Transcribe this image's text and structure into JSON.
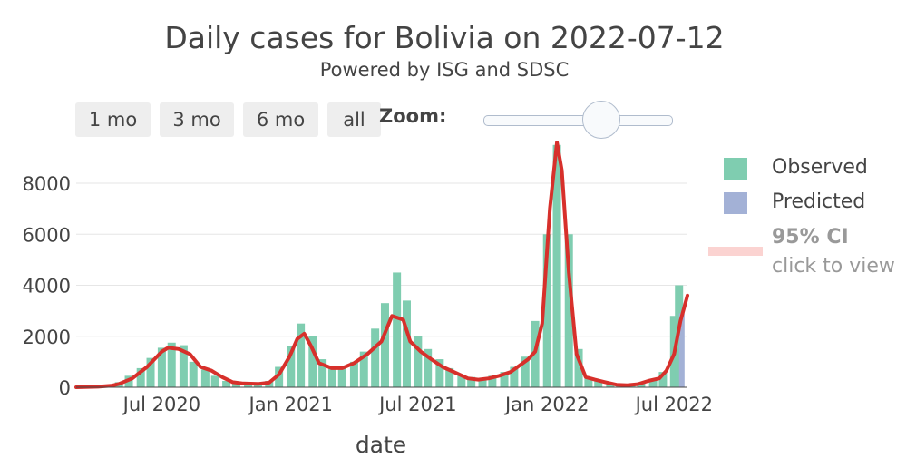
{
  "header": {
    "title": "Daily cases for Bolivia on 2022-07-12",
    "subtitle": "Powered by ISG and SDSC"
  },
  "controls": {
    "range_buttons": [
      "1 mo",
      "3 mo",
      "6 mo",
      "all"
    ],
    "zoom_label": "Zoom:"
  },
  "legend": {
    "observed": "Observed",
    "predicted": "Predicted",
    "ci": "95% CI",
    "ci_hint": "click to view"
  },
  "colors": {
    "observed": "#7fcdb0",
    "predicted": "#a3b1d6",
    "trend": "#d7302b",
    "ci": "#fbd3d1",
    "grid": "#e6e6e6"
  },
  "chart_data": {
    "type": "bar",
    "title": "Daily cases for Bolivia on 2022-07-12",
    "xlabel": "date",
    "ylabel": "",
    "x_range": [
      "2020-03-01",
      "2022-07-20"
    ],
    "ylim": [
      0,
      9600
    ],
    "y_ticks": [
      0,
      2000,
      4000,
      6000,
      8000
    ],
    "x_ticks": [
      {
        "date": "2020-07-01",
        "label": "Jul 2020"
      },
      {
        "date": "2021-01-01",
        "label": "Jan 2021"
      },
      {
        "date": "2021-07-01",
        "label": "Jul 2021"
      },
      {
        "date": "2022-01-01",
        "label": "Jan 2022"
      },
      {
        "date": "2022-07-01",
        "label": "Jul 2022"
      }
    ],
    "series": [
      {
        "name": "Observed",
        "kind": "weekly-bars",
        "points": [
          [
            "2020-03-15",
            10
          ],
          [
            "2020-04-01",
            50
          ],
          [
            "2020-04-15",
            80
          ],
          [
            "2020-05-01",
            200
          ],
          [
            "2020-05-15",
            450
          ],
          [
            "2020-06-01",
            750
          ],
          [
            "2020-06-15",
            1150
          ],
          [
            "2020-07-01",
            1550
          ],
          [
            "2020-07-15",
            1750
          ],
          [
            "2020-08-01",
            1650
          ],
          [
            "2020-08-15",
            1000
          ],
          [
            "2020-09-01",
            700
          ],
          [
            "2020-09-15",
            450
          ],
          [
            "2020-10-01",
            250
          ],
          [
            "2020-10-15",
            150
          ],
          [
            "2020-11-01",
            120
          ],
          [
            "2020-11-15",
            150
          ],
          [
            "2020-12-01",
            250
          ],
          [
            "2020-12-15",
            800
          ],
          [
            "2021-01-01",
            1600
          ],
          [
            "2021-01-15",
            2500
          ],
          [
            "2021-02-01",
            2000
          ],
          [
            "2021-02-15",
            1100
          ],
          [
            "2021-03-01",
            850
          ],
          [
            "2021-03-15",
            850
          ],
          [
            "2021-04-01",
            1000
          ],
          [
            "2021-04-15",
            1400
          ],
          [
            "2021-05-01",
            2300
          ],
          [
            "2021-05-15",
            3300
          ],
          [
            "2021-06-01",
            4500
          ],
          [
            "2021-06-15",
            3400
          ],
          [
            "2021-07-01",
            2000
          ],
          [
            "2021-07-15",
            1500
          ],
          [
            "2021-08-01",
            1100
          ],
          [
            "2021-08-15",
            750
          ],
          [
            "2021-09-01",
            500
          ],
          [
            "2021-09-15",
            400
          ],
          [
            "2021-10-01",
            350
          ],
          [
            "2021-10-15",
            450
          ],
          [
            "2021-11-01",
            600
          ],
          [
            "2021-11-15",
            800
          ],
          [
            "2021-12-01",
            1200
          ],
          [
            "2021-12-15",
            2600
          ],
          [
            "2022-01-01",
            6000
          ],
          [
            "2022-01-15",
            9500
          ],
          [
            "2022-02-01",
            6000
          ],
          [
            "2022-02-15",
            1500
          ],
          [
            "2022-03-01",
            350
          ],
          [
            "2022-03-15",
            280
          ],
          [
            "2022-04-01",
            150
          ],
          [
            "2022-04-15",
            100
          ],
          [
            "2022-05-01",
            90
          ],
          [
            "2022-05-15",
            150
          ],
          [
            "2022-06-01",
            300
          ],
          [
            "2022-06-15",
            600
          ],
          [
            "2022-07-01",
            2800
          ],
          [
            "2022-07-08",
            4000
          ]
        ]
      },
      {
        "name": "Predicted",
        "points": [
          [
            "2022-07-12",
            2900
          ]
        ]
      },
      {
        "name": "Trend",
        "kind": "line",
        "points": [
          [
            "2020-03-01",
            0
          ],
          [
            "2020-04-01",
            20
          ],
          [
            "2020-04-20",
            60
          ],
          [
            "2020-05-01",
            130
          ],
          [
            "2020-05-20",
            350
          ],
          [
            "2020-06-10",
            800
          ],
          [
            "2020-07-01",
            1400
          ],
          [
            "2020-07-10",
            1550
          ],
          [
            "2020-07-25",
            1500
          ],
          [
            "2020-08-10",
            1300
          ],
          [
            "2020-08-25",
            800
          ],
          [
            "2020-09-10",
            650
          ],
          [
            "2020-09-25",
            400
          ],
          [
            "2020-10-10",
            200
          ],
          [
            "2020-10-25",
            150
          ],
          [
            "2020-11-15",
            130
          ],
          [
            "2020-12-01",
            180
          ],
          [
            "2020-12-15",
            500
          ],
          [
            "2020-12-30",
            1200
          ],
          [
            "2021-01-10",
            1900
          ],
          [
            "2021-01-20",
            2100
          ],
          [
            "2021-01-30",
            1600
          ],
          [
            "2021-02-10",
            950
          ],
          [
            "2021-02-28",
            750
          ],
          [
            "2021-03-15",
            750
          ],
          [
            "2021-04-01",
            950
          ],
          [
            "2021-04-20",
            1300
          ],
          [
            "2021-05-10",
            1800
          ],
          [
            "2021-05-25",
            2800
          ],
          [
            "2021-06-10",
            2650
          ],
          [
            "2021-06-20",
            1800
          ],
          [
            "2021-07-05",
            1400
          ],
          [
            "2021-07-20",
            1100
          ],
          [
            "2021-08-05",
            800
          ],
          [
            "2021-08-25",
            550
          ],
          [
            "2021-09-10",
            350
          ],
          [
            "2021-09-25",
            300
          ],
          [
            "2021-10-10",
            350
          ],
          [
            "2021-10-25",
            450
          ],
          [
            "2021-11-10",
            600
          ],
          [
            "2021-11-25",
            900
          ],
          [
            "2021-12-05",
            1100
          ],
          [
            "2021-12-15",
            1400
          ],
          [
            "2021-12-25",
            2500
          ],
          [
            "2022-01-05",
            7000
          ],
          [
            "2022-01-15",
            9600
          ],
          [
            "2022-01-22",
            8500
          ],
          [
            "2022-02-01",
            4500
          ],
          [
            "2022-02-12",
            1300
          ],
          [
            "2022-02-25",
            400
          ],
          [
            "2022-03-10",
            300
          ],
          [
            "2022-03-25",
            200
          ],
          [
            "2022-04-10",
            100
          ],
          [
            "2022-04-25",
            80
          ],
          [
            "2022-05-10",
            120
          ],
          [
            "2022-05-25",
            250
          ],
          [
            "2022-06-10",
            350
          ],
          [
            "2022-06-20",
            650
          ],
          [
            "2022-07-01",
            1300
          ],
          [
            "2022-07-10",
            2600
          ],
          [
            "2022-07-20",
            3600
          ]
        ]
      }
    ]
  }
}
